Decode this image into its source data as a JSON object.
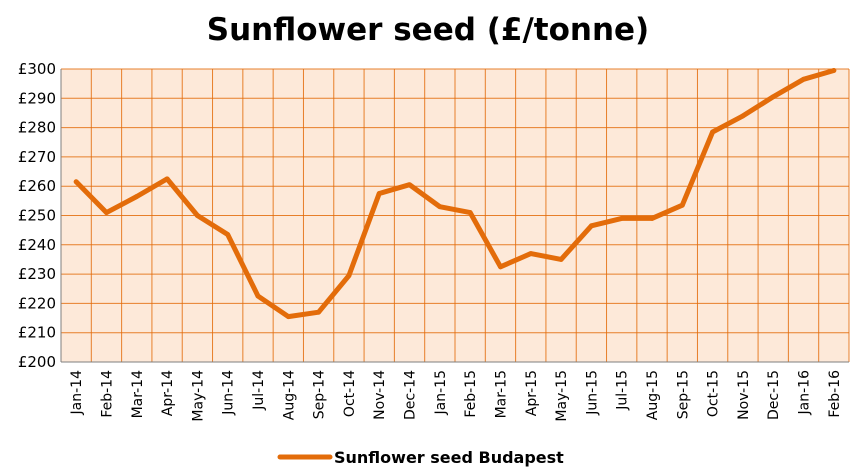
{
  "chart_data": {
    "type": "line",
    "title": "Sunflower seed (£/tonne)",
    "xlabel": "",
    "ylabel": "",
    "categories": [
      "Jan-14",
      "Feb-14",
      "Mar-14",
      "Apr-14",
      "May-14",
      "Jun-14",
      "Jul-14",
      "Aug-14",
      "Sep-14",
      "Oct-14",
      "Nov-14",
      "Dec-14",
      "Jan-15",
      "Feb-15",
      "Mar-15",
      "Apr-15",
      "May-15",
      "Jun-15",
      "Jul-15",
      "Aug-15",
      "Sep-15",
      "Oct-15",
      "Nov-15",
      "Dec-15",
      "Jan-16",
      "Feb-16"
    ],
    "series": [
      {
        "name": "Sunflower seed Budapest",
        "color": "#e36c0a",
        "values": [
          261.5,
          251,
          256.5,
          262.5,
          250,
          243.5,
          222.5,
          215.5,
          217,
          229.5,
          257.5,
          260.5,
          253,
          251,
          232.5,
          237,
          235,
          246.5,
          249,
          249,
          253.5,
          278.5,
          284,
          290.5,
          296.5,
          299.5
        ]
      }
    ],
    "ylim": [
      200,
      300
    ],
    "yticks": [
      200,
      210,
      220,
      230,
      240,
      250,
      260,
      270,
      280,
      290,
      300
    ],
    "ytick_labels": [
      "£200",
      "£210",
      "£220",
      "£230",
      "£240",
      "£250",
      "£260",
      "£270",
      "£280",
      "£290",
      "£300"
    ],
    "grid": true,
    "legend_position": "bottom",
    "plot_background": "#fde9d9",
    "grid_color": "#e36c0a"
  }
}
